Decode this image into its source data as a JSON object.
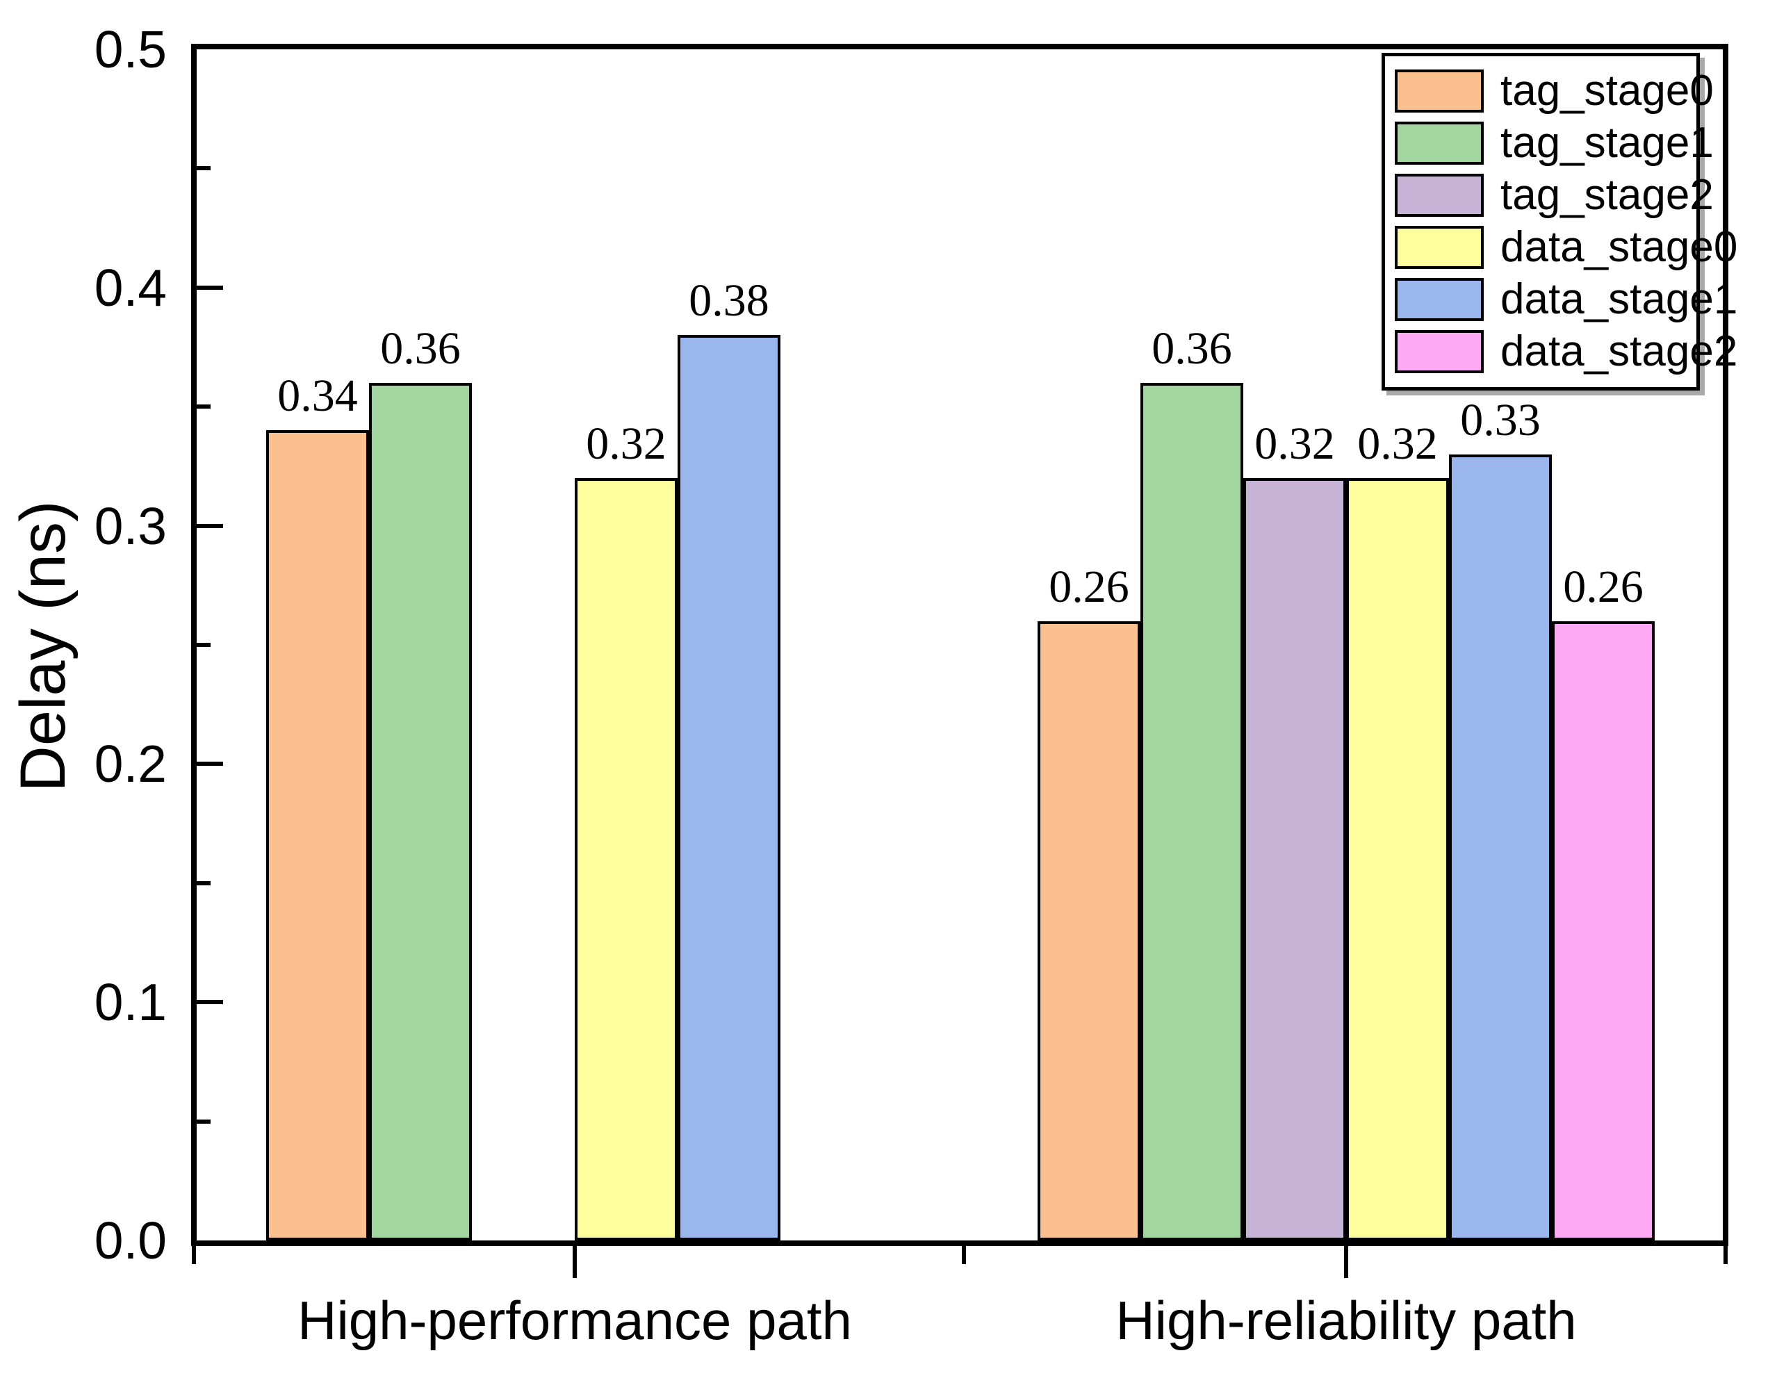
{
  "chart_data": {
    "type": "bar",
    "title": "",
    "xlabel": "",
    "ylabel": "Delay (ns)",
    "categories": [
      "High-performance path",
      "High-reliability path"
    ],
    "series": [
      {
        "name": "tag_stage0",
        "color": "#FAC090",
        "values": [
          0.34,
          0.26
        ]
      },
      {
        "name": "tag_stage1",
        "color": "#A3D5A0",
        "values": [
          0.36,
          0.36
        ]
      },
      {
        "name": "tag_stage2",
        "color": "#C7B4D6",
        "values": [
          null,
          0.32
        ]
      },
      {
        "name": "data_stage0",
        "color": "#FEFE9E",
        "values": [
          0.32,
          0.32
        ]
      },
      {
        "name": "data_stage1",
        "color": "#9AB6EC",
        "values": [
          0.38,
          0.33
        ]
      },
      {
        "name": "data_stage2",
        "color": "#FDA9F4",
        "values": [
          null,
          0.26
        ]
      }
    ],
    "bar_labels": true,
    "ylim": [
      0.0,
      0.5
    ],
    "yticks": [
      0.0,
      0.1,
      0.2,
      0.3,
      0.4,
      0.5
    ],
    "minor_ytick_step": 0.05,
    "grid": false,
    "legend_position": "top-right",
    "plot_border": "full-box",
    "bar_border_color": "#000000",
    "axis_color": "#000000",
    "background_color": "#ffffff"
  }
}
